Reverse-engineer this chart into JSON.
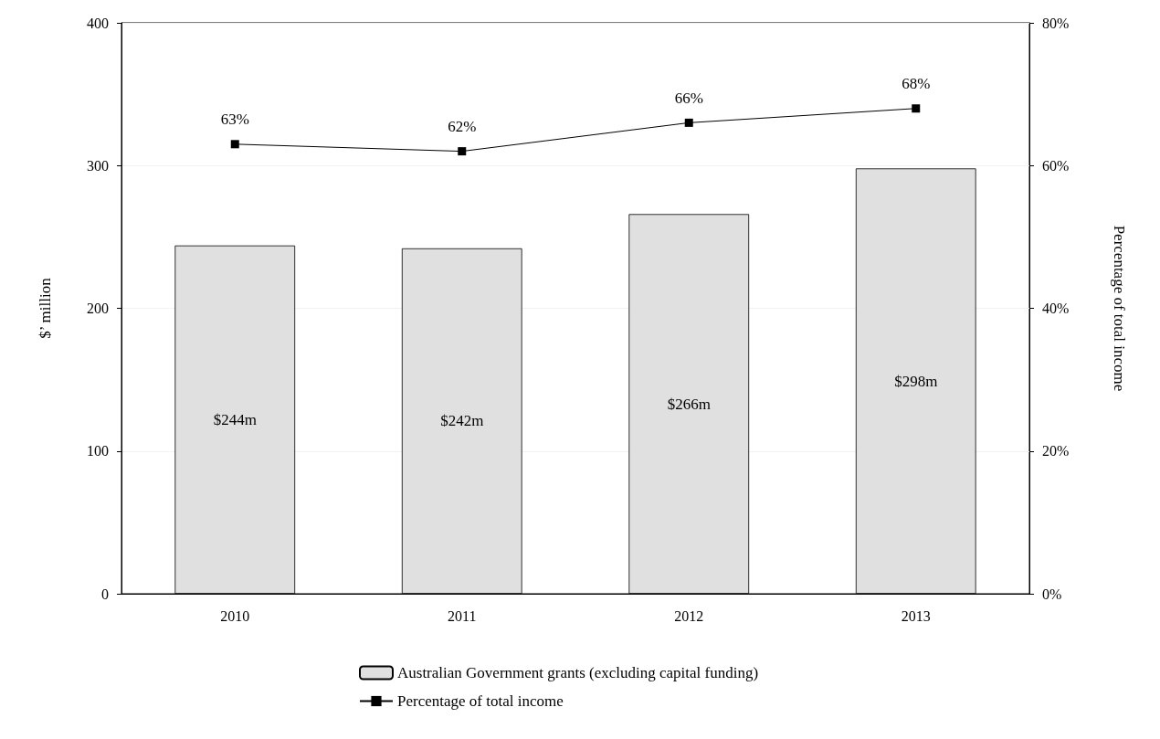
{
  "chart_data": {
    "type": "bar",
    "ylabel": "$’ million",
    "y2label": "Percentage of total income",
    "categories": [
      "2010",
      "2011",
      "2012",
      "2013"
    ],
    "series": [
      {
        "name": "Australian Government grants (excluding capital funding)",
        "color": "#e0e0e0",
        "values": [
          244,
          242,
          266,
          298
        ],
        "value_labels": [
          "$244m",
          "$242m",
          "$266m",
          "$298m"
        ]
      },
      {
        "name": "Percentage of total income",
        "type": "line",
        "axis": "y2",
        "color": "#000000",
        "marker": "square",
        "values": [
          63,
          62,
          66,
          68
        ],
        "value_labels": [
          "63%",
          "62%",
          "66%",
          "68%"
        ]
      }
    ],
    "ylim": [
      0,
      400
    ],
    "yticks": [
      0,
      100,
      200,
      300,
      400
    ],
    "y2lim": [
      0,
      80
    ],
    "y2ticks": [
      {
        "value": 0,
        "label": "0%"
      },
      {
        "value": 20,
        "label": "20%"
      },
      {
        "value": 40,
        "label": "40%"
      },
      {
        "value": 60,
        "label": "60%"
      },
      {
        "value": 80,
        "label": "80%"
      }
    ],
    "grid": "y",
    "legend": "bottom"
  }
}
